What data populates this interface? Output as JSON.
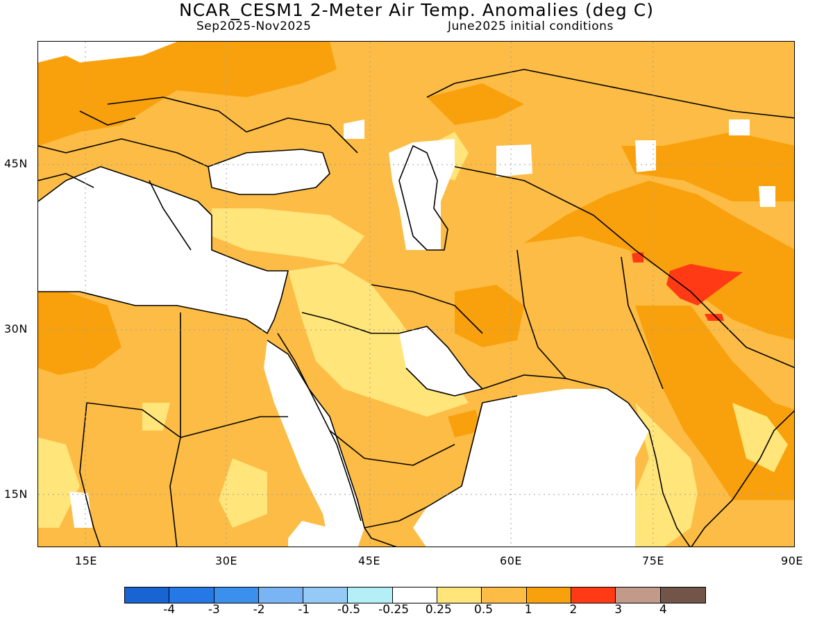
{
  "title": "NCAR_CESM1 2-Meter Air Temp. Anomalies (deg C)",
  "subtitle_left": "Sep2025-Nov2025",
  "subtitle_right": "June2025 initial conditions",
  "lat_labels": [
    "45N",
    "30N",
    "15N"
  ],
  "lon_labels": [
    "15E",
    "30E",
    "45E",
    "60E",
    "75E",
    "90E"
  ],
  "colorbar": {
    "colors": [
      "#1764d2",
      "#2678e6",
      "#3b90ee",
      "#79b4f4",
      "#96caf6",
      "#b4eef6",
      "#ffffff",
      "#ffe57a",
      "#fcbc45",
      "#f9a10c",
      "#ff3a14",
      "#c29a8a",
      "#725548"
    ],
    "labels": [
      "-4",
      "-3",
      "-2",
      "-1",
      "-0.5",
      "-0.25",
      "0.25",
      "0.5",
      "1",
      "2",
      "3",
      "4"
    ]
  },
  "colors": {
    "band_05_1": "#fcbc45",
    "band_1_2": "#f9a10c",
    "band_025_05": "#ffe57a",
    "band_2_3": "#ff3a14"
  }
}
